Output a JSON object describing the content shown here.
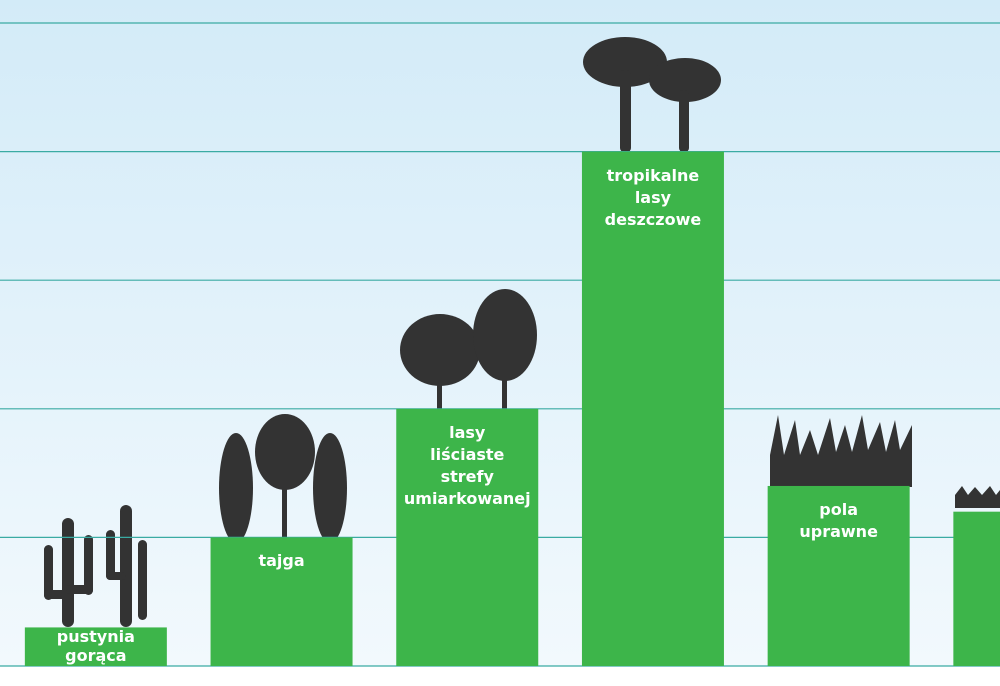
{
  "chart_data": {
    "type": "bar",
    "categories": [
      "pustynia\ngorąca",
      "tajga",
      "lasy\nliściaste\nstrefy\numiarkowanej",
      "tropikalne\nlasy\ndeszczowe",
      "pola\nuprawne",
      null
    ],
    "values": [
      0.3,
      1,
      2,
      4,
      1.4,
      1.2
    ],
    "color": "#3db54a",
    "ylim": [
      0,
      5
    ],
    "yticks": [
      0,
      1,
      2,
      3,
      4,
      5
    ],
    "grid": true
  }
}
